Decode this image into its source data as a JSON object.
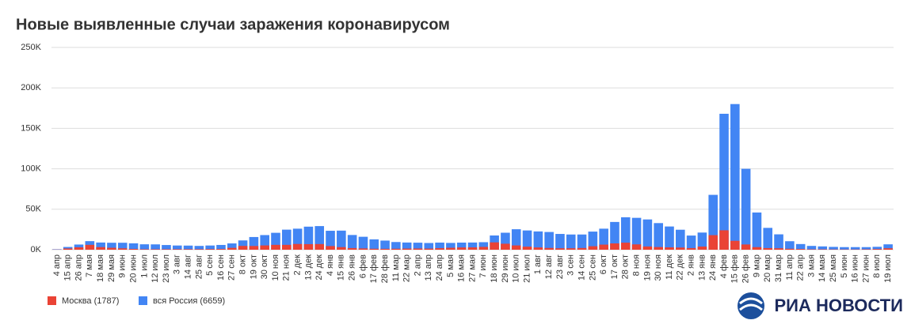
{
  "chart_data": {
    "type": "bar",
    "title": "Новые выявленные случаи заражения коронавирусом",
    "categories": [
      "4 апр",
      "15 апр",
      "26 апр",
      "7 мая",
      "18 мая",
      "29 мая",
      "9 июн",
      "20 июн",
      "1 июл",
      "12 июл",
      "23 июл",
      "3 авг",
      "14 авг",
      "25 авг",
      "5 сен",
      "16 сен",
      "27 сен",
      "8 окт",
      "19 окт",
      "30 окт",
      "10 ноя",
      "21 ноя",
      "2 дек",
      "13 дек",
      "24 дек",
      "4 янв",
      "15 янв",
      "26 янв",
      "6 фев",
      "17 фев",
      "28 фев",
      "11 мар",
      "22 мар",
      "2 апр",
      "13 апр",
      "24 апр",
      "5 мая",
      "16 мая",
      "27 мая",
      "7 июн",
      "18 июн",
      "29 июн",
      "10 июл",
      "21 июл",
      "1 авг",
      "12 авг",
      "23 авг",
      "3 сен",
      "14 сен",
      "25 сен",
      "6 окт",
      "17 окт",
      "28 окт",
      "8 ноя",
      "19 ноя",
      "30 ноя",
      "11 дек",
      "22 дек",
      "2 янв",
      "13 янв",
      "24 янв",
      "4 фев",
      "15 фев",
      "26 фев",
      "9 мар",
      "20 мар",
      "31 мар",
      "11 апр",
      "22 апр",
      "3 мая",
      "14 мая",
      "25 мая",
      "5 июн",
      "16 июн",
      "27 июн",
      "8 июл",
      "19 июл"
    ],
    "series": [
      {
        "name": "вся Россия (6659)",
        "color": "#4285f4",
        "values": [
          600,
          3400,
          6400,
          10600,
          8900,
          8600,
          8600,
          7900,
          6700,
          6600,
          5800,
          5200,
          5100,
          4700,
          5200,
          5900,
          7800,
          11500,
          15700,
          18100,
          20900,
          24800,
          26000,
          28500,
          29200,
          23400,
          23600,
          18200,
          16000,
          12800,
          11300,
          9500,
          8900,
          8700,
          8300,
          8800,
          8400,
          8800,
          8900,
          9300,
          17600,
          21000,
          25300,
          23800,
          22600,
          21900,
          19500,
          18800,
          18800,
          22400,
          26000,
          34300,
          40100,
          39400,
          37400,
          32900,
          28700,
          24700,
          17500,
          21200,
          67800,
          168000,
          180000,
          100000,
          46000,
          27000,
          19000,
          10500,
          7000,
          4700,
          4100,
          3500,
          3200,
          3200,
          3200,
          3600,
          6659
        ]
      },
      {
        "name": "Москва (1787)",
        "color": "#ea4335",
        "values": [
          200,
          1500,
          3000,
          6000,
          3200,
          2400,
          1700,
          1000,
          600,
          600,
          600,
          650,
          650,
          650,
          800,
          900,
          2300,
          4700,
          4600,
          5300,
          6000,
          6000,
          7100,
          6900,
          7000,
          4500,
          3200,
          2000,
          1600,
          1200,
          1100,
          1200,
          1400,
          1500,
          1400,
          1900,
          2400,
          2800,
          2900,
          3500,
          9100,
          7400,
          5300,
          3800,
          2800,
          2200,
          1800,
          1800,
          2100,
          4300,
          6300,
          7800,
          8700,
          6600,
          4000,
          3300,
          2900,
          2700,
          2000,
          3900,
          18000,
          24000,
          11000,
          6500,
          3200,
          2000,
          1800,
          1200,
          900,
          500,
          500,
          400,
          350,
          350,
          500,
          800,
          1787
        ]
      }
    ],
    "ylim": [
      0,
      250000
    ],
    "yticks": [
      {
        "value": 0,
        "label": "0K"
      },
      {
        "value": 50000,
        "label": "50K"
      },
      {
        "value": 100000,
        "label": "100K"
      },
      {
        "value": 150000,
        "label": "150K"
      },
      {
        "value": 200000,
        "label": "200K"
      },
      {
        "value": 250000,
        "label": "250K"
      }
    ],
    "grid": true
  },
  "logo": "РИА НОВОСТИ"
}
